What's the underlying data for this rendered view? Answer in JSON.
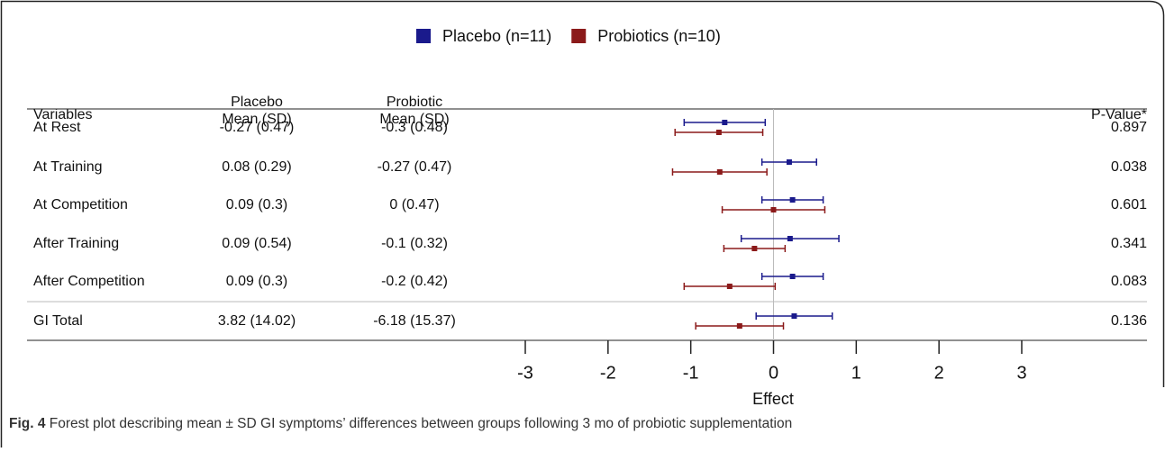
{
  "chart_data": {
    "type": "forest",
    "headers": {
      "variables": "Variables",
      "placebo": [
        "Placebo",
        "Mean (SD)"
      ],
      "probiotic": [
        "Probiotic",
        "Mean (SD)"
      ],
      "p_value": "P-Value*"
    },
    "rows": [
      {
        "variable": "At Rest",
        "placebo": "-0.27 (0.47)",
        "probiotic": "-0.3 (0.48)",
        "p_value": "0.897"
      },
      {
        "variable": "At Training",
        "placebo": "0.08 (0.29)",
        "probiotic": "-0.27 (0.47)",
        "p_value": "0.038"
      },
      {
        "variable": "At Competition",
        "placebo": "0.09 (0.3)",
        "probiotic": "0 (0.47)",
        "p_value": "0.601"
      },
      {
        "variable": "After Training",
        "placebo": "0.09 (0.54)",
        "probiotic": "-0.1 (0.32)",
        "p_value": "0.341"
      },
      {
        "variable": "After Competition",
        "placebo": "0.09 (0.3)",
        "probiotic": "-0.2 (0.42)",
        "p_value": "0.083"
      },
      {
        "variable": "GI Total",
        "placebo": "3.82 (14.02)",
        "probiotic": "-6.18 (15.37)",
        "p_value": "0.136"
      }
    ],
    "series": [
      {
        "name": "Placebo (n=11)",
        "color": "#1a1a8c",
        "values": [
          -0.59,
          0.19,
          0.23,
          0.2,
          0.23,
          0.25
        ],
        "errors": [
          0.49,
          0.33,
          0.37,
          0.59,
          0.37,
          0.46
        ]
      },
      {
        "name": "Probiotics (n=10)",
        "color": "#8b1a1a",
        "values": [
          -0.66,
          -0.65,
          0,
          -0.23,
          -0.53,
          -0.41
        ],
        "errors": [
          0.53,
          0.57,
          0.62,
          0.37,
          0.55,
          0.53
        ]
      }
    ],
    "xlim": [
      -3,
      3
    ],
    "xticks": [
      -3,
      -2,
      -1,
      0,
      1,
      2,
      3
    ],
    "xlabel": "Effect",
    "caption": {
      "label": "Fig. 4",
      "text": "Forest plot describing mean ± SD GI symptoms’ differences between groups following 3 mo of probiotic supplementation"
    }
  }
}
